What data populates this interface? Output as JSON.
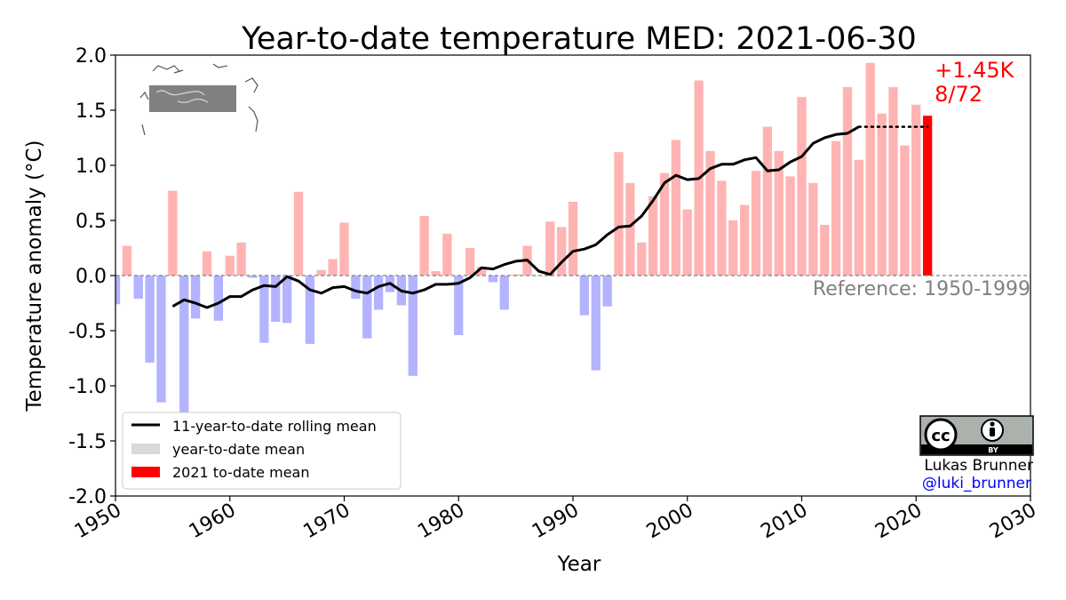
{
  "chart_data": {
    "type": "bar",
    "title": "Year-to-date temperature MED: 2021-06-30",
    "xlabel": "Year",
    "ylabel": "Temperature anomaly (°C)",
    "xlim": [
      1950,
      2030
    ],
    "ylim": [
      -2.0,
      2.0
    ],
    "xticks": [
      1950,
      1960,
      1970,
      1980,
      1990,
      2000,
      2010,
      2020,
      2030
    ],
    "yticks": [
      -2.0,
      -1.5,
      -1.0,
      -0.5,
      0.0,
      0.5,
      1.0,
      1.5,
      2.0
    ],
    "grid": false,
    "reference_label": "Reference: 1950-1999",
    "highlight": {
      "year": 2021,
      "value": 1.45,
      "label": "+1.45K",
      "rank": "8/72"
    },
    "years": [
      1950,
      1951,
      1952,
      1953,
      1954,
      1955,
      1956,
      1957,
      1958,
      1959,
      1960,
      1961,
      1962,
      1963,
      1964,
      1965,
      1966,
      1967,
      1968,
      1969,
      1970,
      1971,
      1972,
      1973,
      1974,
      1975,
      1976,
      1977,
      1978,
      1979,
      1980,
      1981,
      1982,
      1983,
      1984,
      1985,
      1986,
      1987,
      1988,
      1989,
      1990,
      1991,
      1992,
      1993,
      1994,
      1995,
      1996,
      1997,
      1998,
      1999,
      2000,
      2001,
      2002,
      2003,
      2004,
      2005,
      2006,
      2007,
      2008,
      2009,
      2010,
      2011,
      2012,
      2013,
      2014,
      2015,
      2016,
      2017,
      2018,
      2019,
      2020,
      2021
    ],
    "values": [
      -0.26,
      0.27,
      -0.21,
      -0.79,
      -1.15,
      0.77,
      -1.25,
      -0.39,
      0.22,
      -0.41,
      0.18,
      0.3,
      -0.02,
      -0.61,
      -0.42,
      -0.43,
      0.76,
      -0.62,
      0.05,
      0.15,
      0.48,
      -0.21,
      -0.57,
      -0.31,
      -0.15,
      -0.27,
      -0.91,
      0.54,
      0.04,
      0.38,
      -0.54,
      0.25,
      0.08,
      -0.06,
      -0.31,
      0.01,
      0.27,
      0.0,
      0.49,
      0.44,
      0.67,
      -0.36,
      -0.86,
      -0.28,
      1.12,
      0.84,
      0.3,
      0.72,
      0.93,
      1.23,
      0.6,
      1.77,
      1.13,
      0.86,
      0.5,
      0.64,
      0.95,
      1.35,
      1.13,
      0.9,
      1.62,
      0.84,
      0.46,
      1.22,
      1.71,
      1.05,
      1.93,
      1.47,
      1.71,
      1.18,
      1.55,
      1.45
    ],
    "positive_color": "#ffb3b3",
    "negative_color": "#b3b3ff",
    "highlight_color": "#ff0000",
    "rolling_mean_color": "#000000",
    "rolling_mean": {
      "x": [
        1955,
        1956,
        1957,
        1958,
        1959,
        1960,
        1961,
        1962,
        1963,
        1964,
        1965,
        1966,
        1967,
        1968,
        1969,
        1970,
        1971,
        1972,
        1973,
        1974,
        1975,
        1976,
        1977,
        1978,
        1979,
        1980,
        1981,
        1982,
        1983,
        1984,
        1985,
        1986,
        1987,
        1988,
        1989,
        1990,
        1991,
        1992,
        1993,
        1994,
        1995,
        1996,
        1997,
        1998,
        1999,
        2000,
        2001,
        2002,
        2003,
        2004,
        2005,
        2006,
        2007,
        2008,
        2009,
        2010,
        2011,
        2012,
        2013,
        2014,
        2015
      ],
      "y": [
        -0.28,
        -0.22,
        -0.25,
        -0.29,
        -0.25,
        -0.19,
        -0.19,
        -0.13,
        -0.09,
        -0.1,
        -0.01,
        -0.05,
        -0.13,
        -0.16,
        -0.11,
        -0.1,
        -0.14,
        -0.16,
        -0.1,
        -0.07,
        -0.14,
        -0.16,
        -0.13,
        -0.08,
        -0.08,
        -0.07,
        -0.02,
        0.07,
        0.06,
        0.1,
        0.13,
        0.14,
        0.04,
        0.01,
        0.12,
        0.22,
        0.24,
        0.28,
        0.37,
        0.44,
        0.45,
        0.54,
        0.68,
        0.84,
        0.91,
        0.87,
        0.88,
        0.97,
        1.01,
        1.01,
        1.05,
        1.07,
        0.95,
        0.96,
        1.03,
        1.08,
        1.2,
        1.25,
        1.28,
        1.29,
        1.35
      ]
    },
    "dotted_extension": {
      "y": 1.35,
      "x_start": 2015,
      "x_end": 2021
    },
    "legend": {
      "position": "lower-left",
      "items": [
        {
          "label": "11-year-to-date rolling mean",
          "kind": "line",
          "color": "#000000"
        },
        {
          "label": "year-to-date mean",
          "kind": "patch",
          "color": "#d9d9d9"
        },
        {
          "label": "2021 to-date mean",
          "kind": "patch",
          "color": "#ff0000"
        }
      ]
    }
  },
  "credit": {
    "cc_text": "cc",
    "by_text": "BY",
    "author": "Lukas Brunner",
    "handle": "@luki_brunner",
    "handle_color": "#0000ff"
  }
}
